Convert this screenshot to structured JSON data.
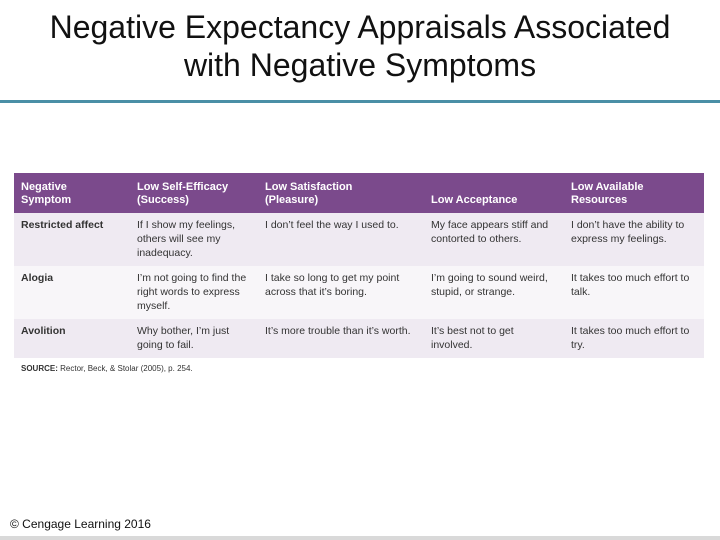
{
  "slide": {
    "title_line1": "Negative Expectancy Appraisals Associated",
    "title_line2": "with Negative Symptoms",
    "footer": "© Cengage Learning 2016"
  },
  "table": {
    "headers": [
      {
        "line1": "Negative",
        "line2": "Symptom"
      },
      {
        "line1": "Low Self-Efficacy",
        "line2": "(Success)"
      },
      {
        "line1": "Low Satisfaction",
        "line2": "(Pleasure)"
      },
      {
        "line1": "",
        "line2": "Low Acceptance"
      },
      {
        "line1": "Low Available",
        "line2": "Resources"
      }
    ],
    "rows": [
      {
        "symptom": "Restricted affect",
        "self_efficacy": "If I show my feelings, others will see my inadequacy.",
        "satisfaction": "I don’t feel the way I used to.",
        "acceptance": "My face appears stiff and contorted to others.",
        "resources": "I don’t have the ability to express my feelings."
      },
      {
        "symptom": "Alogia",
        "self_efficacy": "I’m not going to find the right words to express myself.",
        "satisfaction": "I take so long to get my point across that it’s boring.",
        "acceptance": "I’m going to sound weird, stupid, or strange.",
        "resources": "It takes too much effort to talk."
      },
      {
        "symptom": "Avolition",
        "self_efficacy": "Why bother, I’m just going to fail.",
        "satisfaction": "It’s more trouble than it’s worth.",
        "acceptance": "It’s best not to get involved.",
        "resources": "It takes too much effort to try."
      }
    ],
    "source_label": "SOURCE:",
    "source_text": "Rector, Beck, & Stolar (2005), p. 254."
  },
  "colors": {
    "header_bg": "#7b4a8c",
    "row_odd_bg": "#efeaf2",
    "row_even_bg": "#f8f6f9",
    "title_rule": "#4a8fa6"
  }
}
